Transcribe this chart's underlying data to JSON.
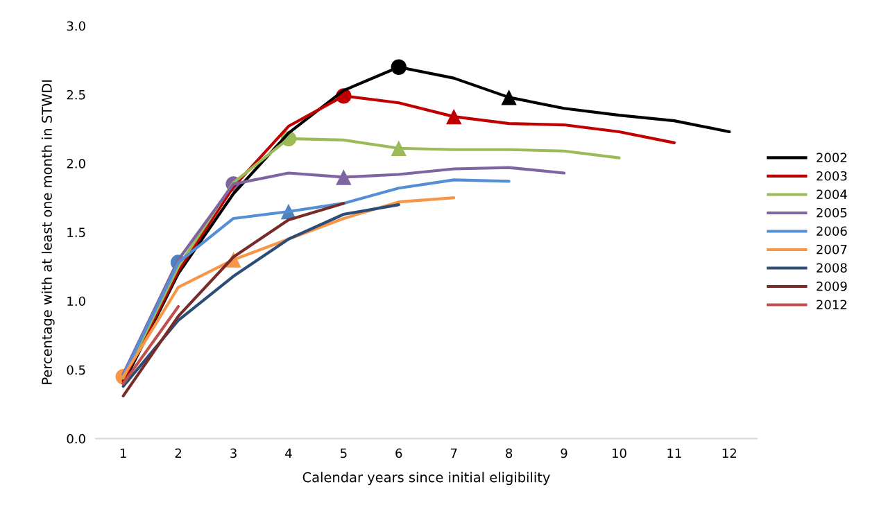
{
  "chart_data": {
    "type": "line",
    "xlabel": "Calendar years since initial eligibility",
    "ylabel": "Percentage with at least one month in STWDI",
    "xlim": [
      0.5,
      12.5
    ],
    "xticks": [
      1,
      2,
      3,
      4,
      5,
      6,
      7,
      8,
      9,
      10,
      11,
      12
    ],
    "ylim": [
      0,
      3
    ],
    "yticks": [
      {
        "value": 0,
        "label": "0.0"
      },
      {
        "value": 0.5,
        "label": "0.5"
      },
      {
        "value": 1,
        "label": "1.0"
      },
      {
        "value": 1.5,
        "label": "1.5"
      },
      {
        "value": 2,
        "label": "2.0"
      },
      {
        "value": 2.5,
        "label": "2.5"
      },
      {
        "value": 3,
        "label": "3.0"
      }
    ],
    "grid": false,
    "legend": "right",
    "marker": "none",
    "line_style": "solid",
    "series": [
      {
        "name": "2002",
        "color": "#000000",
        "x": [
          1,
          2,
          3,
          4,
          5,
          6,
          7,
          8,
          9,
          10,
          11,
          12
        ],
        "values": [
          0.4,
          1.2,
          1.78,
          2.22,
          2.53,
          2.7,
          2.62,
          2.48,
          2.4,
          2.35,
          2.31,
          2.23
        ]
      },
      {
        "name": "2003",
        "color": "#c00000",
        "x": [
          1,
          2,
          3,
          4,
          5,
          6,
          7,
          8,
          9,
          10,
          11
        ],
        "values": [
          0.42,
          1.22,
          1.83,
          2.27,
          2.49,
          2.44,
          2.34,
          2.29,
          2.28,
          2.23,
          2.15
        ]
      },
      {
        "name": "2004",
        "color": "#9bbb59",
        "x": [
          1,
          2,
          3,
          4,
          5,
          6,
          7,
          8,
          9,
          10
        ],
        "values": [
          0.44,
          1.25,
          1.86,
          2.18,
          2.17,
          2.11,
          2.1,
          2.1,
          2.09,
          2.04
        ]
      },
      {
        "name": "2005",
        "color": "#8064a2",
        "x": [
          1,
          2,
          3,
          4,
          5,
          6,
          7,
          8,
          9
        ],
        "values": [
          0.47,
          1.3,
          1.85,
          1.93,
          1.9,
          1.92,
          1.96,
          1.97,
          1.93
        ]
      },
      {
        "name": "2006",
        "color": "#558ed5",
        "x": [
          1,
          2,
          3,
          4,
          5,
          6,
          7,
          8
        ],
        "values": [
          0.46,
          1.28,
          1.6,
          1.65,
          1.71,
          1.82,
          1.88,
          1.87
        ]
      },
      {
        "name": "2007",
        "color": "#f79646",
        "x": [
          1,
          2,
          3,
          4,
          5,
          6,
          7
        ],
        "values": [
          0.45,
          1.1,
          1.3,
          1.45,
          1.6,
          1.72,
          1.75
        ]
      },
      {
        "name": "2008",
        "color": "#2c4d75",
        "x": [
          1,
          2,
          3,
          4,
          5,
          6
        ],
        "values": [
          0.38,
          0.86,
          1.18,
          1.45,
          1.63,
          1.7
        ]
      },
      {
        "name": "2009",
        "color": "#772c2a",
        "x": [
          1,
          2,
          3,
          4,
          5
        ],
        "values": [
          0.31,
          0.89,
          1.32,
          1.59,
          1.71
        ]
      },
      {
        "name": "2012",
        "color": "#c0504d",
        "x": [
          1,
          2
        ],
        "values": [
          0.4,
          0.96
        ]
      },
      {
        "type": "scatter",
        "marker": "circle",
        "colors": [
          "#000000",
          "#c00000",
          "#9bbb59",
          "#8064a2",
          "#4f81bd",
          "#f79646"
        ],
        "x": [
          6,
          5,
          4,
          3,
          2,
          1
        ],
        "values": [
          2.7,
          2.49,
          2.18,
          1.85,
          1.28,
          0.45
        ]
      },
      {
        "type": "scatter",
        "marker": "triangle",
        "colors": [
          "#000000",
          "#c00000",
          "#9bbb59",
          "#8064a2",
          "#4f81bd",
          "#f79646"
        ],
        "x": [
          8,
          7,
          6,
          5,
          4,
          3
        ],
        "values": [
          2.48,
          2.34,
          2.11,
          1.9,
          1.65,
          1.3
        ]
      }
    ]
  }
}
